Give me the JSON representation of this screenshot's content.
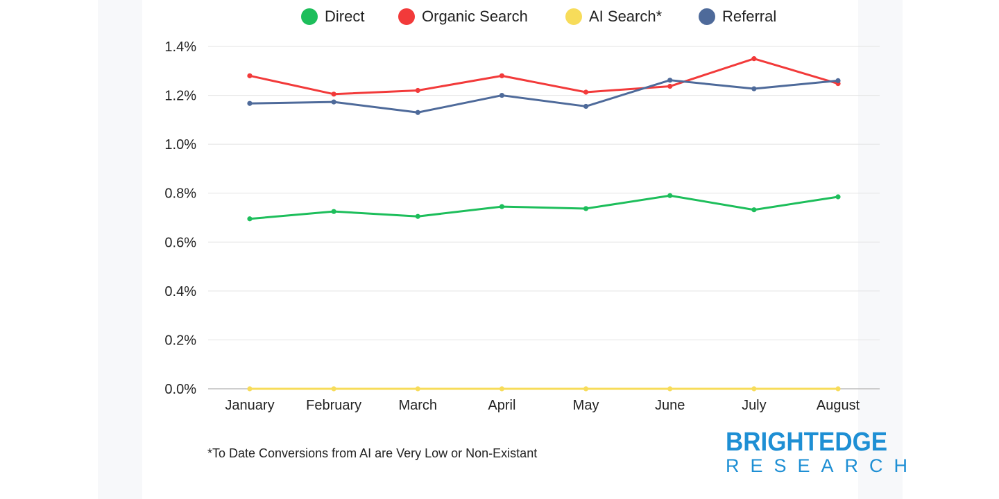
{
  "legend": [
    {
      "name": "Direct",
      "color": "#1dbe5b"
    },
    {
      "name": "Organic Search",
      "color": "#f23a3a"
    },
    {
      "name": "AI Search*",
      "color": "#f7dc5a"
    },
    {
      "name": "Referral",
      "color": "#4e6a9a"
    }
  ],
  "chart_data": {
    "type": "line",
    "categories": [
      "January",
      "February",
      "March",
      "April",
      "May",
      "June",
      "July",
      "August"
    ],
    "y_ticks": [
      "0.0%",
      "0.2%",
      "0.4%",
      "0.6%",
      "0.8%",
      "1.0%",
      "1.2%",
      "1.4%"
    ],
    "ylim": [
      0,
      1.4
    ],
    "yunit": "%",
    "grid": true,
    "legend_position": "top",
    "series": [
      {
        "name": "Direct",
        "color": "#1dbe5b",
        "values": [
          0.695,
          0.725,
          0.705,
          0.745,
          0.737,
          0.79,
          0.732,
          0.785
        ]
      },
      {
        "name": "Organic Search",
        "color": "#f23a3a",
        "values": [
          1.28,
          1.205,
          1.22,
          1.28,
          1.213,
          1.237,
          1.35,
          1.248
        ]
      },
      {
        "name": "AI Search*",
        "color": "#f7dc5a",
        "values": [
          0,
          0,
          0,
          0,
          0,
          0,
          0,
          0
        ]
      },
      {
        "name": "Referral",
        "color": "#4e6a9a",
        "values": [
          1.167,
          1.173,
          1.13,
          1.2,
          1.155,
          1.262,
          1.227,
          1.26
        ]
      }
    ]
  },
  "footnote": "*To Date Conversions from AI are Very Low or Non-Existant",
  "brand": {
    "main": "BRIGHTEDGE",
    "sub": "RESEARCH"
  }
}
